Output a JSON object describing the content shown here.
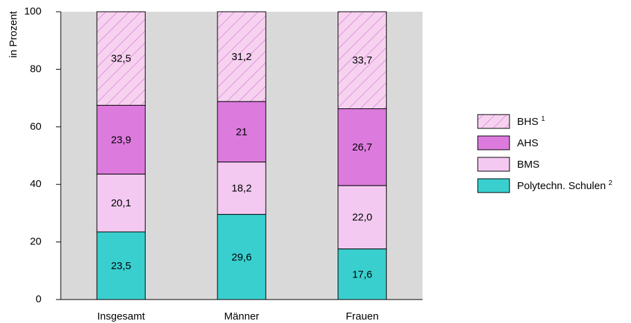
{
  "chart_data": {
    "type": "stacked_bar",
    "y_label": "in Prozent",
    "categories": [
      "Insgesamt",
      "Männer",
      "Frauen"
    ],
    "series": [
      {
        "name": "Polytechn. Schulen",
        "name_sup": "2",
        "color": "#3acfcf",
        "values": [
          23.5,
          29.6,
          17.6
        ],
        "value_labels": [
          "23,5",
          "29,6",
          "17,6"
        ]
      },
      {
        "name": "BMS",
        "color": "#f3c9f1",
        "values": [
          20.1,
          18.2,
          22.0
        ],
        "value_labels": [
          "20,1",
          "18,2",
          "22,0"
        ]
      },
      {
        "name": "AHS",
        "color": "#dc7ade",
        "values": [
          23.9,
          21,
          26.7
        ],
        "value_labels": [
          "23,9",
          "21",
          "26,7"
        ]
      },
      {
        "name": "BHS",
        "name_sup": "1",
        "color": "#f6d2ef",
        "hatch": "#dc7ade",
        "values": [
          32.5,
          31.2,
          33.7
        ],
        "value_labels": [
          "32,5",
          "31,2",
          "33,7"
        ]
      }
    ],
    "ylim": [
      0,
      100
    ],
    "yticks": [
      0,
      20,
      40,
      60,
      80,
      100
    ],
    "plot_background": "#d9d9d9"
  }
}
